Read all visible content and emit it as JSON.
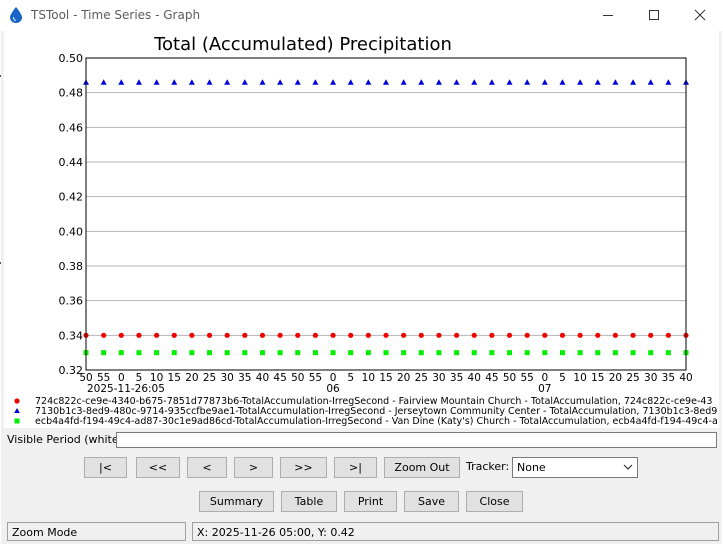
{
  "window": {
    "title": "TSTool - Time Series - Graph",
    "icon": "water-drop-icon",
    "controls": [
      "minimize-icon",
      "maximize-icon",
      "close-icon"
    ]
  },
  "chart_data": {
    "type": "scatter",
    "title": "Total (Accumulated) Precipitation",
    "xlabel": "",
    "ylabel": "",
    "ylim": [
      0.32,
      0.5
    ],
    "yticks": [
      "0.50",
      "0.48",
      "0.46",
      "0.44",
      "0.42",
      "0.40",
      "0.38",
      "0.36",
      "0.34",
      "0.32"
    ],
    "xtick_minutes": [
      "50",
      "55",
      "0",
      "5",
      "10",
      "15",
      "20",
      "25",
      "30",
      "35",
      "40",
      "45",
      "50",
      "55",
      "0",
      "5",
      "10",
      "15",
      "20",
      "25",
      "30",
      "35",
      "40",
      "45",
      "50",
      "55",
      "0",
      "5",
      "10",
      "15",
      "20",
      "25",
      "30",
      "35",
      "40"
    ],
    "xtick_second_row": [
      {
        "index": 0,
        "text": "2025-11-26:05"
      },
      {
        "index": 14,
        "text": "06"
      },
      {
        "index": 26,
        "text": "07"
      }
    ],
    "x_start": "2025-11-26 04:50",
    "x_end": "2025-11-26 07:40",
    "x_step_minutes": 5,
    "grid": true,
    "series": [
      {
        "name": "724c822c-ce9e-4340-b675-7851d77873b6-TotalAccumulation-IrregSecond - Fairview Mountain Church - TotalAccumulation, 724c822c-ce9e-43",
        "color": "#ee0000",
        "marker": "circle",
        "constant_value": 0.34
      },
      {
        "name": "7130b1c3-8ed9-480c-9714-935ccfbe9ae1-TotalAccumulation-IrregSecond - Jerseytown Community Center - TotalAccumulation, 7130b1c3-8ed9",
        "color": "#0000dd",
        "marker": "triangle",
        "constant_value": 0.486
      },
      {
        "name": "ecb4a4fd-f194-49c4-ad87-30c1e9ad86cd-TotalAccumulation-IrregSecond - Van Dine (Katy's) Church - TotalAccumulation, ecb4a4fd-f194-49c4-a",
        "color": "#00ee00",
        "marker": "square",
        "constant_value": 0.33
      }
    ]
  },
  "controls": {
    "visible_period_label": "Visible Period (white):",
    "nav_buttons": [
      "|<",
      "<<",
      "<",
      ">",
      ">>",
      ">|"
    ],
    "zoom_out": "Zoom Out",
    "tracker_label": "Tracker:",
    "tracker_value": "None",
    "summary": "Summary",
    "table": "Table",
    "print": "Print",
    "save": "Save",
    "close": "Close"
  },
  "status": {
    "mode": "Zoom Mode",
    "position": "X:  2025-11-26 05:00,  Y:  0.42"
  }
}
